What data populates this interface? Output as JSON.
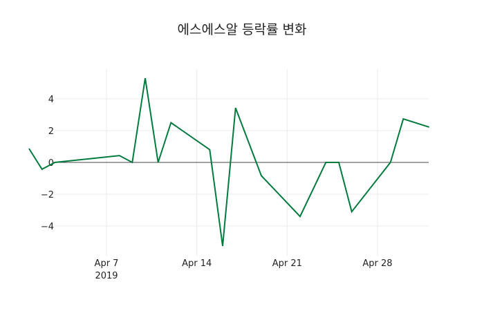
{
  "title": "에스에스알 등락률 변화",
  "chart_data": {
    "type": "line",
    "title": "에스에스알 등락률 변화",
    "xlabel": "",
    "ylabel": "",
    "line_color": "#007a3d",
    "grid": true,
    "ylim": [
      -5.9,
      5.9
    ],
    "yticks": [
      -4,
      -2,
      0,
      2,
      4
    ],
    "ytick_labels": [
      "−4",
      "−2",
      "0",
      "2",
      "4"
    ],
    "xticks": [
      "Apr 7",
      "Apr 14",
      "Apr 21",
      "Apr 28"
    ],
    "xtick_sublabel": "2019",
    "x": [
      "2019-04-01",
      "2019-04-02",
      "2019-04-03",
      "2019-04-08",
      "2019-04-09",
      "2019-04-10",
      "2019-04-11",
      "2019-04-12",
      "2019-04-15",
      "2019-04-16",
      "2019-04-17",
      "2019-04-19",
      "2019-04-22",
      "2019-04-24",
      "2019-04-25",
      "2019-04-26",
      "2019-04-29",
      "2019-04-30",
      "2019-05-02"
    ],
    "series": [
      {
        "name": "등락률",
        "values": [
          0.87,
          -0.43,
          0.0,
          0.43,
          0.0,
          5.3,
          0.0,
          2.5,
          0.8,
          -5.26,
          3.43,
          -0.84,
          -3.4,
          0.0,
          0.0,
          -3.1,
          0.0,
          2.74,
          2.22
        ]
      }
    ]
  }
}
